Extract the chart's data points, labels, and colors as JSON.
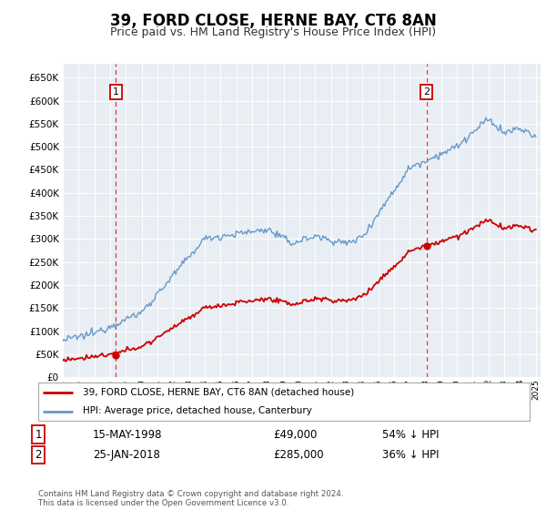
{
  "title": "39, FORD CLOSE, HERNE BAY, CT6 8AN",
  "subtitle": "Price paid vs. HM Land Registry's House Price Index (HPI)",
  "sale1_date": "15-MAY-1998",
  "sale1_price": 49000,
  "sale1_label": "54% ↓ HPI",
  "sale2_date": "25-JAN-2018",
  "sale2_price": 285000,
  "sale2_label": "36% ↓ HPI",
  "legend_line1": "39, FORD CLOSE, HERNE BAY, CT6 8AN (detached house)",
  "legend_line2": "HPI: Average price, detached house, Canterbury",
  "footer": "Contains HM Land Registry data © Crown copyright and database right 2024.\nThis data is licensed under the Open Government Licence v3.0.",
  "property_color": "#cc0000",
  "hpi_color": "#6699cc",
  "sale1_x": 1998.37,
  "sale2_x": 2018.07,
  "ylim_max": 680000,
  "plot_bg": "#e8eef4",
  "title_fontsize": 12,
  "subtitle_fontsize": 9
}
